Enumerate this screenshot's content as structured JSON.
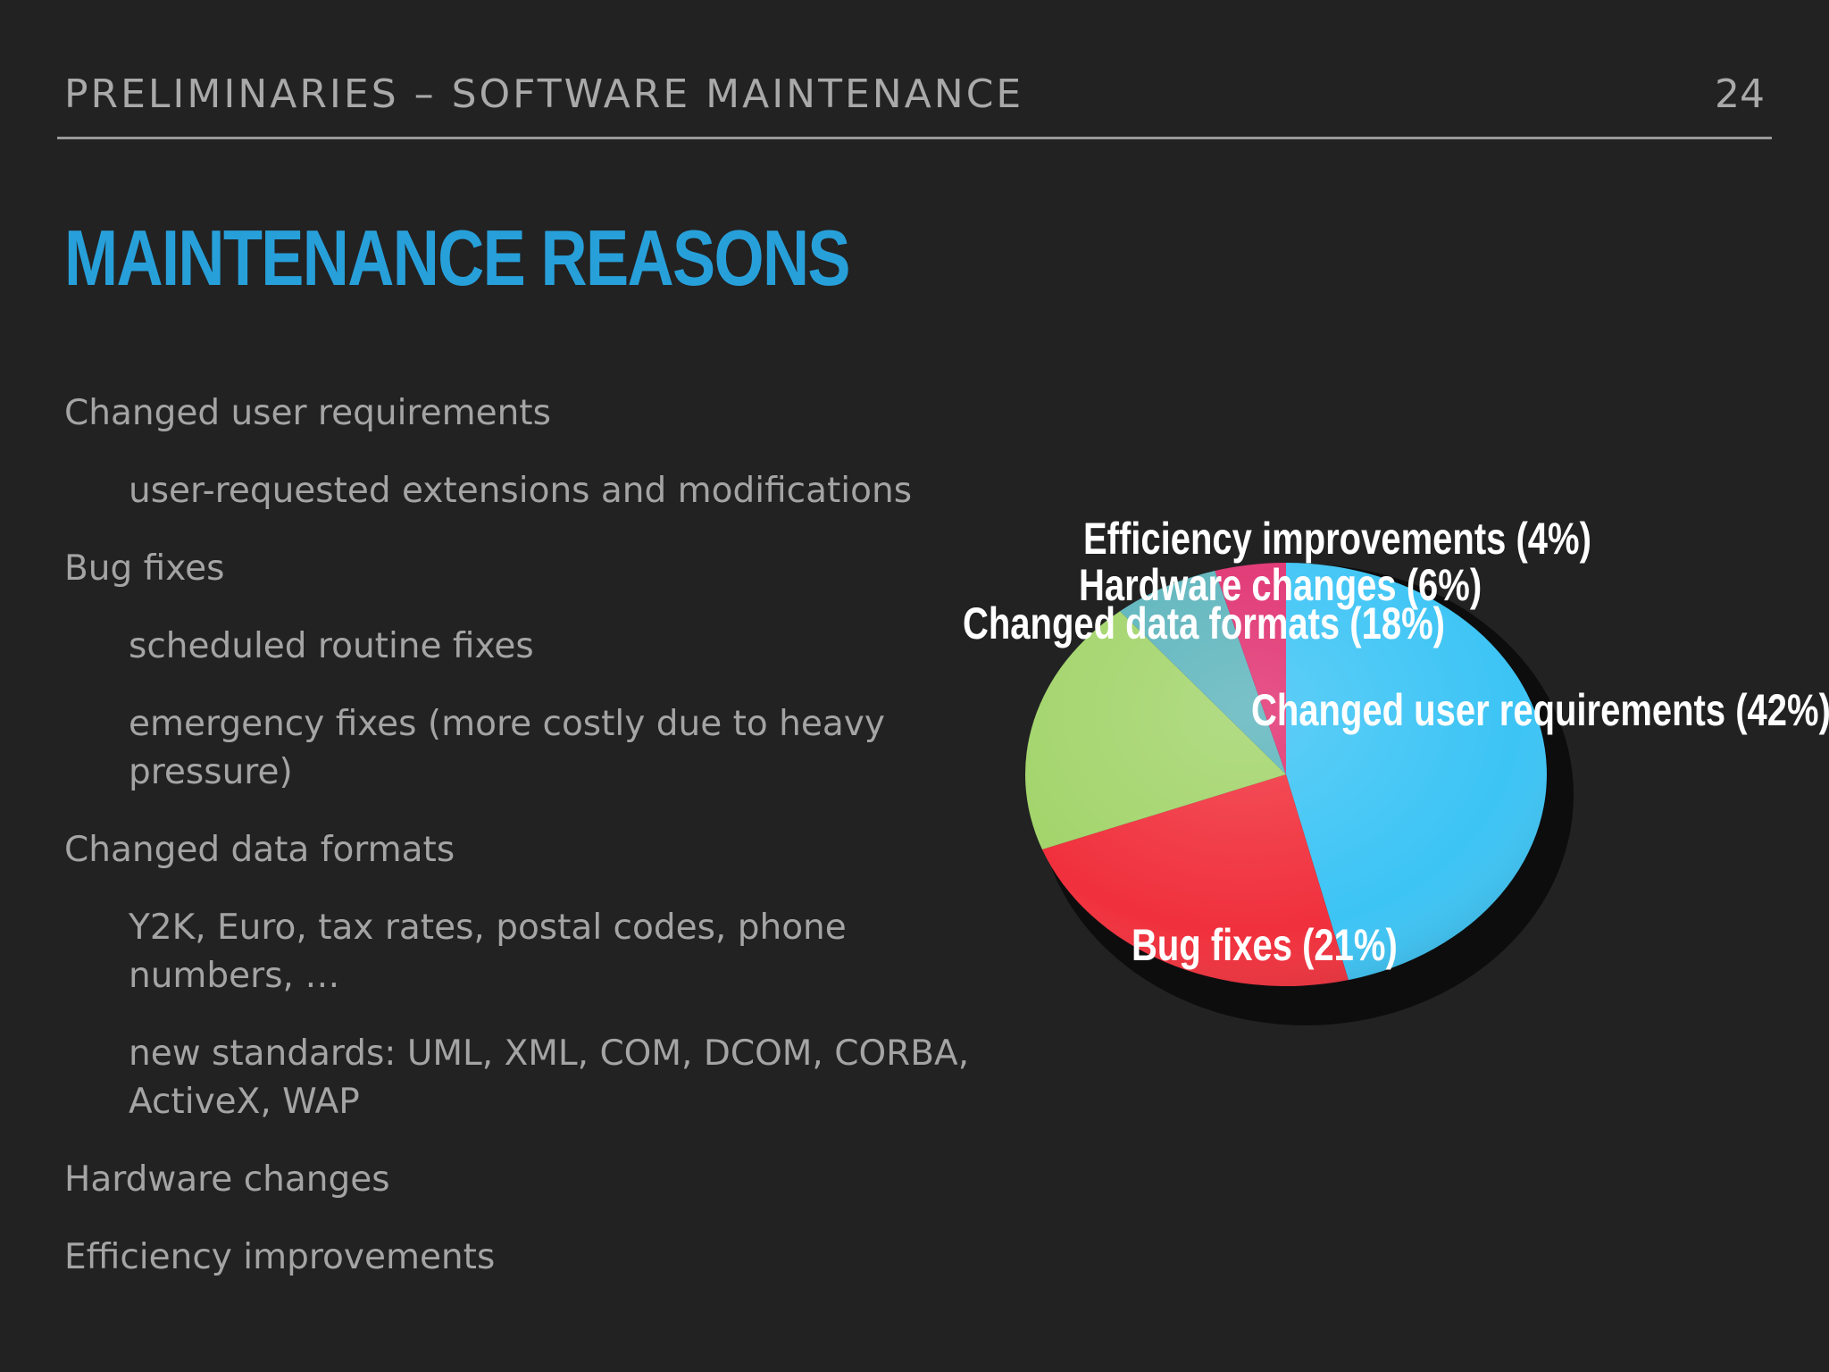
{
  "header": {
    "title": "PRELIMINARIES – SOFTWARE MAINTENANCE",
    "page_number": "24"
  },
  "slide": {
    "title": "MAINTENANCE REASONS",
    "bullets": [
      {
        "text": "Changed user requirements",
        "level": 0
      },
      {
        "text": "user-requested extensions and modifications",
        "level": 1
      },
      {
        "text": "Bug fixes",
        "level": 0
      },
      {
        "text": "scheduled routine fixes",
        "level": 1
      },
      {
        "text": "emergency fixes (more costly due to heavy pressure)",
        "level": 1
      },
      {
        "text": "Changed data formats",
        "level": 0
      },
      {
        "text": "Y2K, Euro, tax rates, postal codes, phone numbers, …",
        "level": 1
      },
      {
        "text": "new standards: UML, XML, COM, DCOM, CORBA, ActiveX, WAP",
        "level": 1
      },
      {
        "text": "Hardware changes",
        "level": 0
      },
      {
        "text": "Efficiency improvements",
        "level": 0
      }
    ]
  },
  "chart_data": {
    "type": "pie",
    "title": "",
    "slices": [
      {
        "label": "Changed user requirements (42%)",
        "value": 42,
        "color": "#3cc4f5"
      },
      {
        "label": "Bug fixes (21%)",
        "value": 21,
        "color": "#f0303c"
      },
      {
        "label": "Changed data formats (18%)",
        "value": 18,
        "color": "#a2d46a"
      },
      {
        "label": "Hardware changes (6%)",
        "value": 6,
        "color": "#5cb4bc"
      },
      {
        "label": "Efficiency improvements (4%)",
        "value": 4,
        "color": "#e0306f"
      }
    ]
  }
}
